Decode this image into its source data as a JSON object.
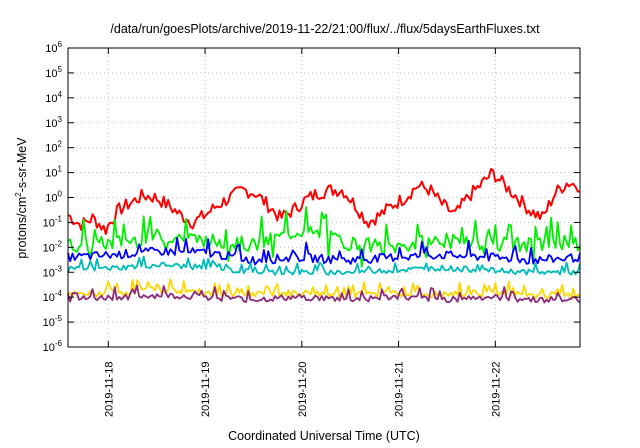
{
  "chart_data": {
    "type": "line",
    "title": "/data/run/goesPlots/archive/2019-11-22/21:00/flux/../flux/5daysEarthFluxes.txt",
    "xlabel": "Coordinated Universal Time (UTC)",
    "ylabel": "protons/cm2-s-sr-MeV",
    "ylabel_parts": {
      "pre": "protons/cm",
      "sup": "2",
      "post": "-s-sr-MeV"
    },
    "y_scale": "log",
    "ylim_exponents": [
      -6,
      6
    ],
    "y_ticks": [
      {
        "base": "10",
        "exp": "-6"
      },
      {
        "base": "10",
        "exp": "-5"
      },
      {
        "base": "10",
        "exp": "-4"
      },
      {
        "base": "10",
        "exp": "-3"
      },
      {
        "base": "10",
        "exp": "-2"
      },
      {
        "base": "10",
        "exp": "-1"
      },
      {
        "base": "10",
        "exp": "0"
      },
      {
        "base": "10",
        "exp": "1"
      },
      {
        "base": "10",
        "exp": "2"
      },
      {
        "base": "10",
        "exp": "3"
      },
      {
        "base": "10",
        "exp": "4"
      },
      {
        "base": "10",
        "exp": "5"
      },
      {
        "base": "10",
        "exp": "6"
      }
    ],
    "x_range_days": [
      "2019-11-17",
      "2019-11-22"
    ],
    "x_ticks": [
      "2019-11-18",
      "2019-11-19",
      "2019-11-20",
      "2019-11-21",
      "2019-11-22"
    ],
    "grid": true,
    "series": [
      {
        "color": "#ff0000",
        "x": [
          "2019-11-17",
          "2019-11-17",
          "2019-11-17",
          "2019-11-17",
          "2019-11-17",
          "2019-11-17",
          "2019-11-18",
          "2019-11-18",
          "2019-11-18",
          "2019-11-18",
          "2019-11-18",
          "2019-11-18",
          "2019-11-18",
          "2019-11-18",
          "2019-11-19",
          "2019-11-19",
          "2019-11-19",
          "2019-11-19",
          "2019-11-19",
          "2019-11-19",
          "2019-11-19",
          "2019-11-20",
          "2019-11-20",
          "2019-11-20",
          "2019-11-20",
          "2019-11-20",
          "2019-11-20",
          "2019-11-20",
          "2019-11-21",
          "2019-11-21",
          "2019-11-21",
          "2019-11-21",
          "2019-11-21",
          "2019-11-21",
          "2019-11-22",
          "2019-11-22",
          "2019-11-22",
          "2019-11-22",
          "2019-11-22",
          "2019-11-22",
          "2019-11-22",
          "2019-11-22"
        ],
        "y": [
          0.2,
          0.08,
          0.15,
          0.05,
          0.3,
          0.6,
          1.2,
          1.0,
          0.5,
          0.2,
          0.1,
          0.2,
          0.5,
          1.0,
          2.0,
          1.5,
          0.5,
          0.15,
          0.3,
          0.8,
          1.5,
          2.0,
          2.0,
          0.5,
          0.1,
          0.2,
          0.5,
          1.0,
          3.0,
          2.0,
          0.5,
          0.2,
          1.0,
          3.0,
          10.0,
          3.0,
          1.0,
          0.3,
          0.15,
          1.5,
          4.0,
          3.0
        ]
      },
      {
        "color": "#00ee00",
        "x": [
          "2019-11-17",
          "2019-11-18",
          "2019-11-18",
          "2019-11-19",
          "2019-11-19",
          "2019-11-20",
          "2019-11-20",
          "2019-11-21",
          "2019-11-21",
          "2019-11-22",
          "2019-11-22",
          "2019-11-22"
        ],
        "y": [
          0.012,
          0.015,
          0.03,
          0.02,
          0.012,
          0.05,
          0.015,
          0.01,
          0.02,
          0.015,
          0.012,
          0.02
        ]
      },
      {
        "color": "#0000ff",
        "x": [
          "2019-11-17",
          "2019-11-18",
          "2019-11-18",
          "2019-11-19",
          "2019-11-19",
          "2019-11-20",
          "2019-11-20",
          "2019-11-21",
          "2019-11-21",
          "2019-11-22",
          "2019-11-22",
          "2019-11-22"
        ],
        "y": [
          0.004,
          0.005,
          0.007,
          0.006,
          0.003,
          0.004,
          0.003,
          0.004,
          0.005,
          0.004,
          0.003,
          0.004
        ]
      },
      {
        "color": "#00bbbb",
        "x": [
          "2019-11-17",
          "2019-11-18",
          "2019-11-18",
          "2019-11-19",
          "2019-11-19",
          "2019-11-20",
          "2019-11-20",
          "2019-11-21",
          "2019-11-21",
          "2019-11-22",
          "2019-11-22",
          "2019-11-22"
        ],
        "y": [
          0.0013,
          0.0015,
          0.002,
          0.0015,
          0.001,
          0.001,
          0.001,
          0.0012,
          0.0015,
          0.0012,
          0.001,
          0.001
        ]
      },
      {
        "color": "#ffd700",
        "x": [
          "2019-11-17",
          "2019-11-18",
          "2019-11-18",
          "2019-11-19",
          "2019-11-19",
          "2019-11-20",
          "2019-11-20",
          "2019-11-21",
          "2019-11-21",
          "2019-11-22",
          "2019-11-22",
          "2019-11-22"
        ],
        "y": [
          0.00012,
          0.00015,
          0.0002,
          0.00015,
          0.00012,
          0.00015,
          0.00012,
          0.00015,
          0.00012,
          0.00015,
          0.00012,
          0.00012
        ]
      },
      {
        "color": "#8b2a7a",
        "x": [
          "2019-11-17",
          "2019-11-18",
          "2019-11-18",
          "2019-11-19",
          "2019-11-19",
          "2019-11-20",
          "2019-11-20",
          "2019-11-21",
          "2019-11-21",
          "2019-11-22",
          "2019-11-22",
          "2019-11-22"
        ],
        "y": [
          8e-05,
          0.0001,
          0.00012,
          0.0001,
          8e-05,
          0.0001,
          8e-05,
          0.0001,
          8e-05,
          0.0001,
          8e-05,
          8e-05
        ]
      }
    ]
  }
}
